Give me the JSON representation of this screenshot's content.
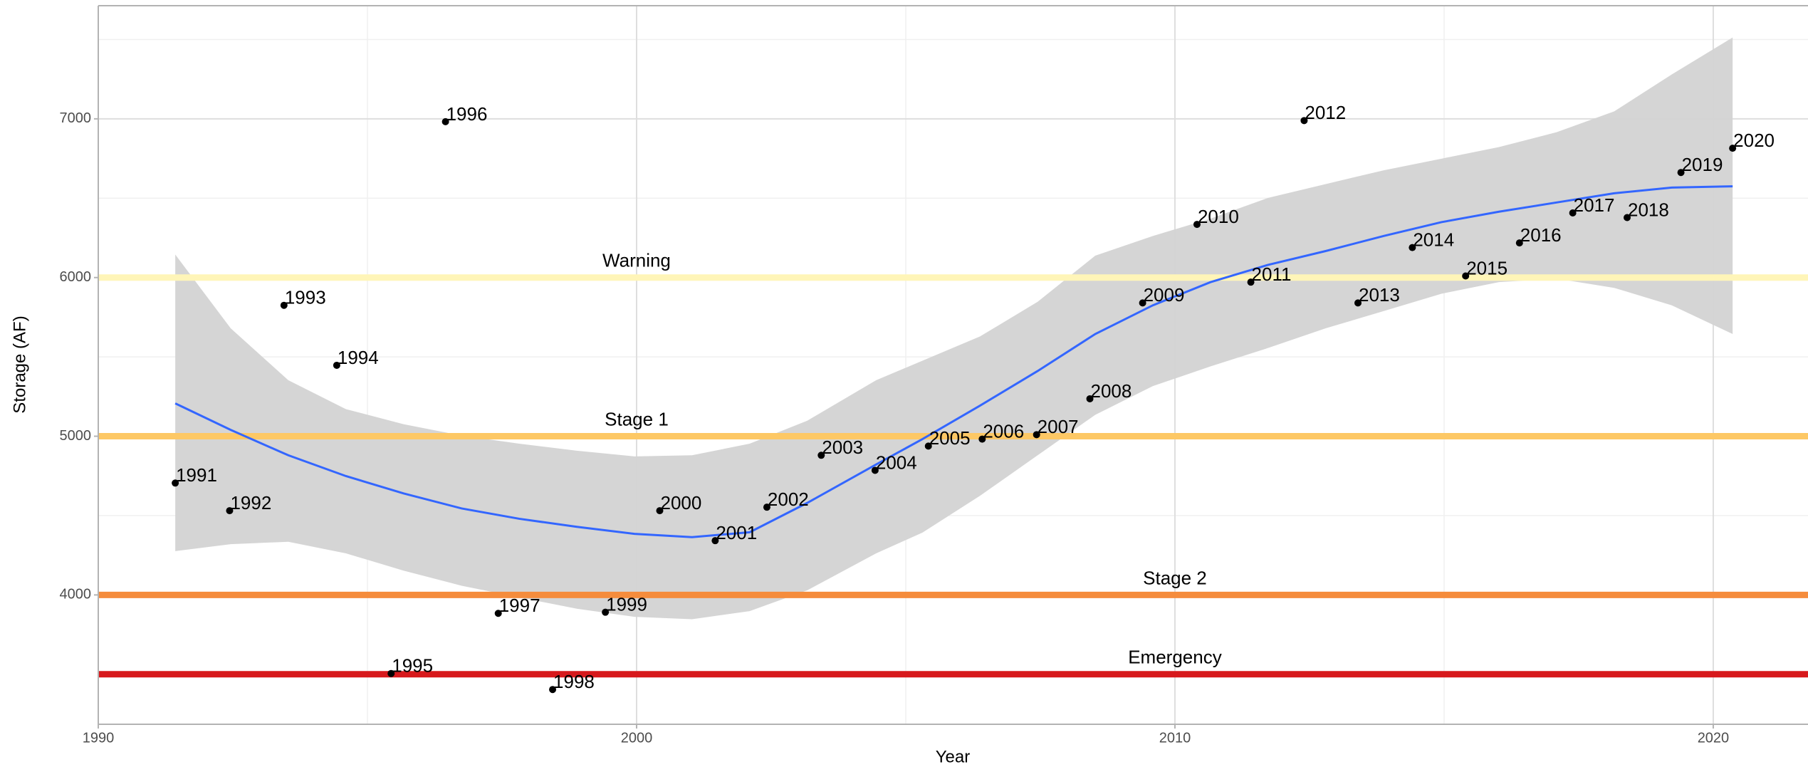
{
  "chart_data": {
    "type": "scatter",
    "x_label": "Year",
    "y_label": "Storage (AF)",
    "xlim": [
      1990,
      2021.76
    ],
    "ylim": [
      3185,
      7713
    ],
    "xticks": [
      1990,
      2000,
      2010,
      2020
    ],
    "yticks": [
      4000,
      5000,
      6000,
      7000
    ],
    "xminor": [
      1995,
      2005,
      2015
    ],
    "yminor": [
      3500,
      4500,
      5500,
      6500,
      7500
    ],
    "grid": true,
    "points": {
      "color": "#000000",
      "x": [
        1991.43,
        1992.44,
        1993.45,
        1994.43,
        1995.44,
        1996.45,
        1997.43,
        1998.44,
        1999.42,
        2000.43,
        2001.46,
        2002.42,
        2003.43,
        2004.43,
        2005.42,
        2006.42,
        2007.43,
        2008.42,
        2009.4,
        2010.41,
        2011.41,
        2012.4,
        2013.4,
        2014.41,
        2015.4,
        2016.4,
        2017.39,
        2018.4,
        2019.4,
        2020.36
      ],
      "values": [
        4705,
        4531,
        5825,
        5447,
        3505,
        6982,
        3884,
        3404,
        3891,
        4531,
        4342,
        4553,
        4880,
        4785,
        4938,
        4982,
        5010,
        5236,
        5840,
        6335,
        5971,
        6989,
        5840,
        6189,
        6010,
        6218,
        6407,
        6378,
        6662,
        6815
      ],
      "labels": [
        "1991",
        "1992",
        "1993",
        "1994",
        "1995",
        "1996",
        "1997",
        "1998",
        "1999",
        "2000",
        "2001",
        "2002",
        "2003",
        "2004",
        "2005",
        "2006",
        "2007",
        "2008",
        "2009",
        "2010",
        "2011",
        "2012",
        "2013",
        "2014",
        "2015",
        "2016",
        "2017",
        "2018",
        "2019",
        "2020"
      ]
    },
    "smooth": {
      "color": "#3366ff",
      "band_color": "#d3d3d3",
      "x": [
        1991.43,
        1992.46,
        1993.53,
        1994.6,
        1995.67,
        1996.75,
        1997.82,
        1998.89,
        1999.96,
        2001.03,
        2002.1,
        2003.17,
        2004.45,
        2005.31,
        2006.38,
        2007.45,
        2008.52,
        2009.59,
        2010.66,
        2011.73,
        2012.8,
        2013.88,
        2014.95,
        2016.02,
        2017.09,
        2018.16,
        2019.23,
        2020.36
      ],
      "values": [
        5207,
        5040,
        4880,
        4749,
        4640,
        4545,
        4480,
        4429,
        4385,
        4364,
        4395,
        4580,
        4822,
        4982,
        5193,
        5411,
        5644,
        5825,
        5971,
        6080,
        6167,
        6262,
        6349,
        6415,
        6473,
        6531,
        6567,
        6575
      ],
      "upper": [
        6145,
        5680,
        5353,
        5171,
        5076,
        5004,
        4953,
        4909,
        4873,
        4880,
        4953,
        5098,
        5353,
        5476,
        5629,
        5847,
        6138,
        6262,
        6371,
        6502,
        6589,
        6676,
        6749,
        6822,
        6916,
        7047,
        7280,
        7513
      ],
      "lower": [
        4276,
        4320,
        4335,
        4262,
        4153,
        4058,
        3985,
        3913,
        3862,
        3847,
        3898,
        4029,
        4262,
        4393,
        4625,
        4880,
        5135,
        5316,
        5440,
        5556,
        5680,
        5789,
        5898,
        5971,
        5993,
        5935,
        5825,
        5644
      ]
    },
    "thresholds": [
      {
        "name": "Warning",
        "value": 6000,
        "color": "#fff5b8",
        "label_x": 2000
      },
      {
        "name": "Stage 1",
        "value": 5000,
        "color": "#fdc865",
        "label_x": 2000
      },
      {
        "name": "Stage 2",
        "value": 4000,
        "color": "#f58c3c",
        "label_x": 2010
      },
      {
        "name": "Emergency",
        "value": 3500,
        "color": "#d7191c",
        "label_x": 2010
      }
    ]
  }
}
